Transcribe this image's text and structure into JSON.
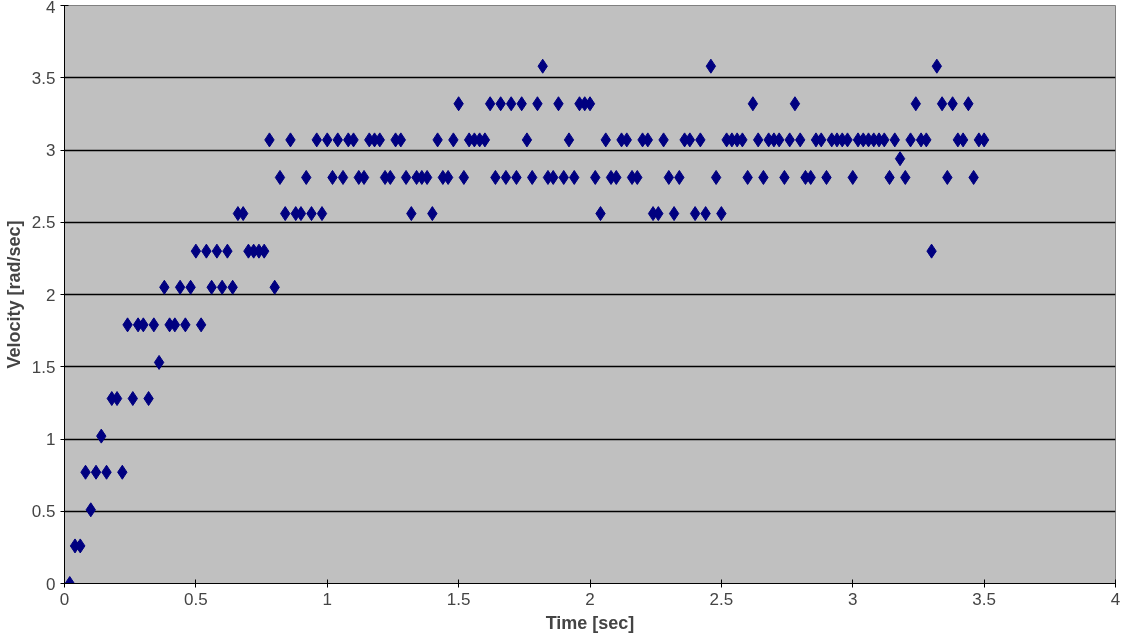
{
  "chart_data": {
    "type": "scatter",
    "xlabel": "Time [sec]",
    "ylabel": "Velocity [rad/sec]",
    "xlim": [
      0,
      4
    ],
    "ylim": [
      0,
      4
    ],
    "xticks": [
      0,
      0.5,
      1,
      1.5,
      2,
      2.5,
      3,
      3.5,
      4
    ],
    "yticks": [
      0,
      0.5,
      1,
      1.5,
      2,
      2.5,
      3,
      3.5,
      4
    ],
    "grid": "y",
    "marker": "diamond",
    "series": [
      {
        "color": "#000080",
        "x": [
          0.02,
          0.04,
          0.06,
          0.08,
          0.1,
          0.12,
          0.14,
          0.16,
          0.18,
          0.2,
          0.22,
          0.24,
          0.26,
          0.28,
          0.3,
          0.32,
          0.34,
          0.36,
          0.38,
          0.4,
          0.42,
          0.44,
          0.46,
          0.48,
          0.5,
          0.52,
          0.54,
          0.56,
          0.58,
          0.6,
          0.62,
          0.64,
          0.66,
          0.68,
          0.7,
          0.72,
          0.74,
          0.76,
          0.78,
          0.8,
          0.82,
          0.84,
          0.86,
          0.88,
          0.9,
          0.92,
          0.94,
          0.96,
          0.98,
          1.0,
          1.02,
          1.04,
          1.06,
          1.08,
          1.1,
          1.12,
          1.14,
          1.16,
          1.18,
          1.2,
          1.22,
          1.24,
          1.26,
          1.28,
          1.3,
          1.32,
          1.34,
          1.36,
          1.38,
          1.4,
          1.42,
          1.44,
          1.46,
          1.48,
          1.5,
          1.52,
          1.54,
          1.56,
          1.58,
          1.6,
          1.62,
          1.64,
          1.66,
          1.68,
          1.7,
          1.72,
          1.74,
          1.76,
          1.78,
          1.8,
          1.82,
          1.84,
          1.86,
          1.88,
          1.9,
          1.92,
          1.94,
          1.96,
          1.98,
          2.0,
          2.02,
          2.04,
          2.06,
          2.08,
          2.1,
          2.12,
          2.14,
          2.16,
          2.18,
          2.2,
          2.22,
          2.24,
          2.26,
          2.28,
          2.3,
          2.32,
          2.34,
          2.36,
          2.38,
          2.4,
          2.42,
          2.44,
          2.46,
          2.48,
          2.5,
          2.52,
          2.54,
          2.56,
          2.58,
          2.6,
          2.62,
          2.64,
          2.66,
          2.68,
          2.7,
          2.72,
          2.74,
          2.76,
          2.78,
          2.8,
          2.82,
          2.84,
          2.86,
          2.88,
          2.9,
          2.92,
          2.94,
          2.96,
          2.98,
          3.0,
          3.02,
          3.04,
          3.06,
          3.08,
          3.1,
          3.12,
          3.14,
          3.16,
          3.18,
          3.2,
          3.22,
          3.24,
          3.26,
          3.28,
          3.3,
          3.32,
          3.34,
          3.36,
          3.38,
          3.4,
          3.42,
          3.44,
          3.46,
          3.48,
          3.5
        ],
        "values": [
          0,
          0.26,
          0.26,
          0.77,
          0.51,
          0.77,
          1.02,
          0.77,
          1.28,
          1.28,
          0.77,
          1.79,
          1.28,
          1.79,
          1.79,
          1.28,
          1.79,
          1.53,
          2.05,
          1.79,
          1.79,
          2.05,
          1.79,
          2.05,
          2.3,
          1.79,
          2.3,
          2.05,
          2.3,
          2.05,
          2.3,
          2.05,
          2.56,
          2.56,
          2.3,
          2.3,
          2.3,
          2.3,
          3.07,
          2.05,
          2.81,
          2.56,
          3.07,
          2.56,
          2.56,
          2.81,
          2.56,
          3.07,
          2.56,
          3.07,
          2.81,
          3.07,
          2.81,
          3.07,
          3.07,
          2.81,
          2.81,
          3.07,
          3.07,
          3.07,
          2.81,
          2.81,
          3.07,
          3.07,
          2.81,
          2.56,
          2.81,
          2.81,
          2.81,
          2.56,
          3.07,
          2.81,
          2.81,
          3.07,
          3.32,
          2.81,
          3.07,
          3.07,
          3.07,
          3.07,
          3.32,
          2.81,
          3.32,
          2.81,
          3.32,
          2.81,
          3.32,
          3.07,
          2.81,
          3.32,
          3.58,
          2.81,
          2.81,
          3.32,
          2.81,
          3.07,
          2.81,
          3.32,
          3.32,
          3.32,
          2.81,
          2.56,
          3.07,
          2.81,
          2.81,
          3.07,
          3.07,
          2.81,
          2.81,
          3.07,
          3.07,
          2.56,
          2.56,
          3.07,
          2.81,
          2.56,
          2.81,
          3.07,
          3.07,
          2.56,
          3.07,
          2.56,
          3.58,
          2.81,
          2.56,
          3.07,
          3.07,
          3.07,
          3.07,
          2.81,
          3.32,
          3.07,
          2.81,
          3.07,
          3.07,
          3.07,
          2.81,
          3.07,
          3.32,
          3.07,
          2.81,
          2.81,
          3.07,
          3.07,
          2.81,
          3.07,
          3.07,
          3.07,
          3.07,
          2.81,
          3.07,
          3.07,
          3.07,
          3.07,
          3.07,
          3.07,
          2.81,
          3.07,
          2.94,
          2.81,
          3.07,
          3.32,
          3.07,
          3.07,
          2.3,
          3.58,
          3.32,
          2.81,
          3.32,
          3.07,
          3.07,
          3.32,
          2.81,
          3.07,
          3.07
        ]
      }
    ]
  }
}
